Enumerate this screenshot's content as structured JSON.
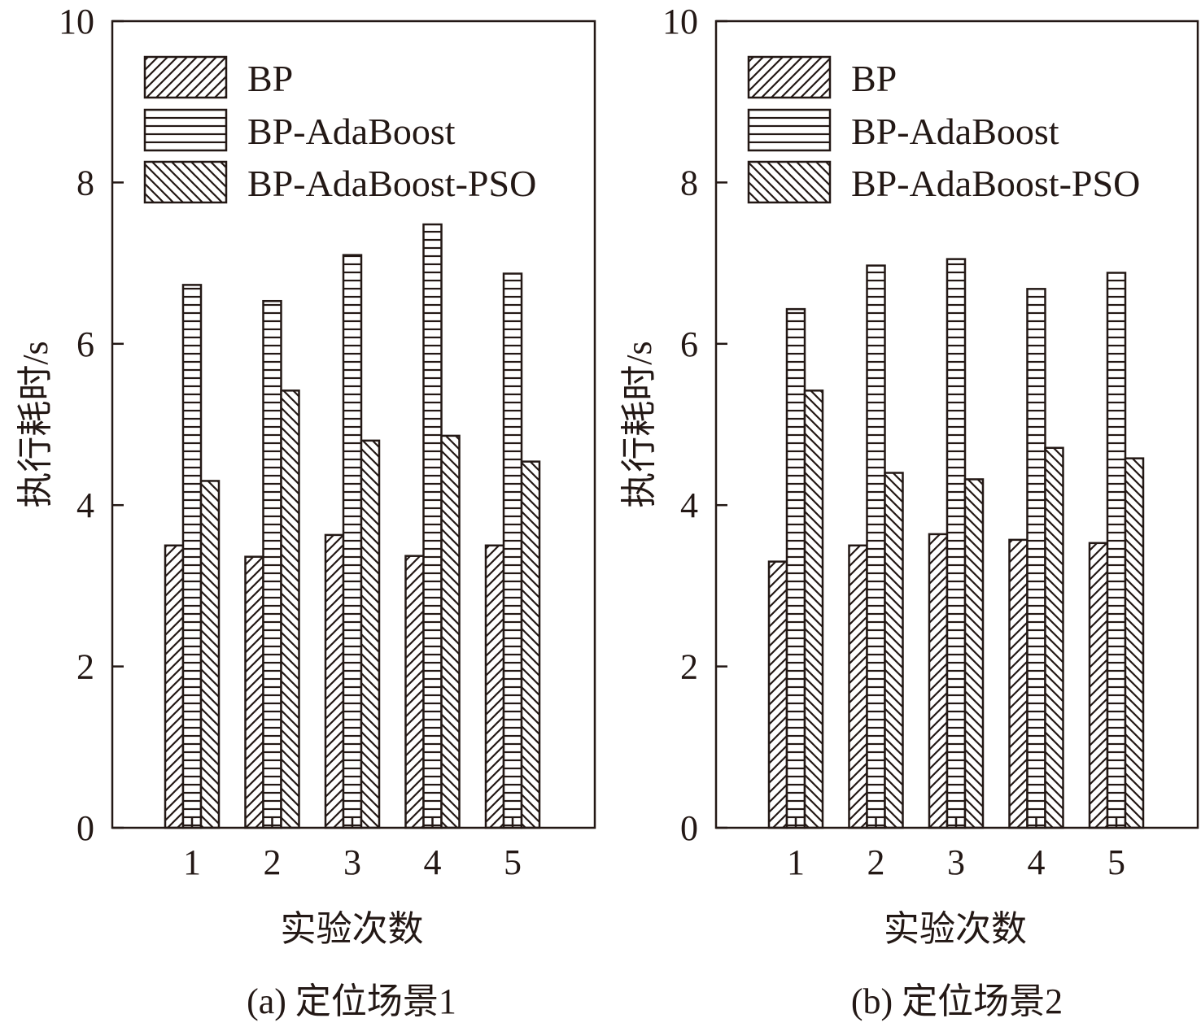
{
  "chart_data": [
    {
      "type": "bar",
      "caption": "(a) 定位场景1",
      "xlabel": "实验次数",
      "ylabel": "执行耗时/s",
      "ylim": [
        0,
        10
      ],
      "yticks": [
        0,
        2,
        4,
        6,
        8,
        10
      ],
      "categories": [
        "1",
        "2",
        "3",
        "4",
        "5"
      ],
      "legend_position": "top-left",
      "series": [
        {
          "name": "BP",
          "pattern": "diagonal-forward",
          "values": [
            3.5,
            3.36,
            3.63,
            3.37,
            3.5
          ]
        },
        {
          "name": "BP-AdaBoost",
          "pattern": "horizontal",
          "values": [
            6.73,
            6.53,
            7.1,
            7.48,
            6.87
          ]
        },
        {
          "name": "BP-AdaBoost-PSO",
          "pattern": "diagonal-backward",
          "values": [
            4.3,
            5.42,
            4.8,
            4.86,
            4.54
          ]
        }
      ]
    },
    {
      "type": "bar",
      "caption": "(b) 定位场景2",
      "xlabel": "实验次数",
      "ylabel": "执行耗时/s",
      "ylim": [
        0,
        10
      ],
      "yticks": [
        0,
        2,
        4,
        6,
        8,
        10
      ],
      "categories": [
        "1",
        "2",
        "3",
        "4",
        "5"
      ],
      "legend_position": "top-left",
      "series": [
        {
          "name": "BP",
          "pattern": "diagonal-forward",
          "values": [
            3.3,
            3.5,
            3.64,
            3.57,
            3.53
          ]
        },
        {
          "name": "BP-AdaBoost",
          "pattern": "horizontal",
          "values": [
            6.43,
            6.97,
            7.05,
            6.68,
            6.88
          ]
        },
        {
          "name": "BP-AdaBoost-PSO",
          "pattern": "diagonal-backward",
          "values": [
            5.42,
            4.4,
            4.32,
            4.71,
            4.58
          ]
        }
      ]
    }
  ],
  "colors": {
    "ink": "#231815",
    "background": "#ffffff"
  }
}
